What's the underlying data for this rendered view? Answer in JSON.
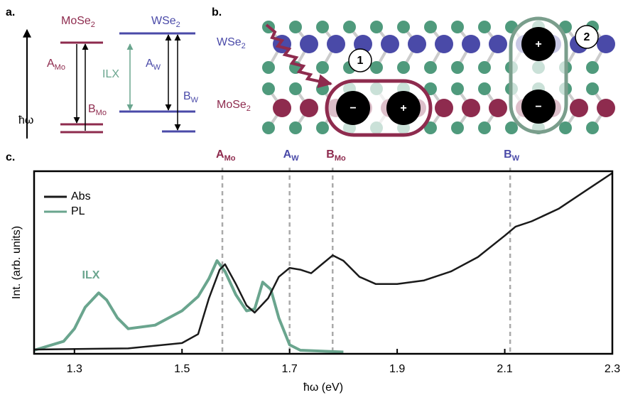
{
  "panel_a": {
    "label": "a.",
    "materials": [
      {
        "name": "MoSe",
        "sub": "2"
      },
      {
        "name": "WSe",
        "sub": "2"
      }
    ],
    "transitions": [
      {
        "name": "A",
        "sub": "Mo"
      },
      {
        "name": "B",
        "sub": "Mo"
      },
      {
        "name": "A",
        "sub": "W"
      },
      {
        "name": "B",
        "sub": "W"
      }
    ],
    "ilx": "ILX",
    "axis_label": "ħω"
  },
  "panel_b": {
    "label": "b.",
    "layers": [
      {
        "name": "WSe",
        "sub": "2"
      },
      {
        "name": "MoSe",
        "sub": "2"
      }
    ],
    "processes": [
      "1",
      "2"
    ],
    "charges": [
      "−",
      "+",
      "+",
      "−"
    ]
  },
  "chart_data": {
    "type": "line",
    "panel_label": "c.",
    "xlabel": "ħω (eV)",
    "ylabel": "Int. (arb. units)",
    "xlim": [
      1.225,
      2.3
    ],
    "xticks": [
      1.3,
      1.5,
      1.7,
      1.9,
      2.1,
      2.3
    ],
    "ylim": [
      0,
      1.02
    ],
    "legend": "upper left",
    "annotation": "ILX",
    "series": [
      {
        "name": "Abs",
        "color": "#1a1a1a",
        "x": [
          1.225,
          1.4,
          1.5,
          1.53,
          1.55,
          1.57,
          1.58,
          1.6,
          1.62,
          1.635,
          1.66,
          1.68,
          1.7,
          1.72,
          1.74,
          1.76,
          1.78,
          1.8,
          1.83,
          1.86,
          1.9,
          1.95,
          2.0,
          2.05,
          2.1,
          2.12,
          2.15,
          2.2,
          2.25,
          2.3
        ],
        "values": [
          0.024,
          0.03,
          0.06,
          0.11,
          0.31,
          0.47,
          0.5,
          0.39,
          0.27,
          0.23,
          0.31,
          0.43,
          0.48,
          0.47,
          0.45,
          0.5,
          0.55,
          0.52,
          0.43,
          0.39,
          0.39,
          0.41,
          0.46,
          0.54,
          0.66,
          0.71,
          0.74,
          0.81,
          0.91,
          1.01
        ]
      },
      {
        "name": "PL",
        "color": "#6aa58e",
        "x": [
          1.225,
          1.28,
          1.3,
          1.32,
          1.345,
          1.36,
          1.38,
          1.4,
          1.45,
          1.5,
          1.53,
          1.55,
          1.565,
          1.58,
          1.6,
          1.62,
          1.635,
          1.65,
          1.665,
          1.68,
          1.7,
          1.72,
          1.8
        ],
        "values": [
          0.02,
          0.07,
          0.14,
          0.26,
          0.34,
          0.3,
          0.2,
          0.14,
          0.16,
          0.24,
          0.32,
          0.42,
          0.52,
          0.46,
          0.33,
          0.24,
          0.25,
          0.4,
          0.36,
          0.2,
          0.05,
          0.02,
          0.01
        ]
      }
    ],
    "markers": [
      {
        "value": 1.575,
        "name": "A",
        "sub": "Mo",
        "color": "#8e2b4e"
      },
      {
        "value": 1.7,
        "name": "A",
        "sub": "W",
        "color": "#4a4aa8"
      },
      {
        "value": 1.78,
        "name": "B",
        "sub": "Mo",
        "color": "#8e2b4e"
      },
      {
        "value": 2.11,
        "name": "B",
        "sub": "W",
        "color": "#4a4aa8"
      }
    ]
  }
}
